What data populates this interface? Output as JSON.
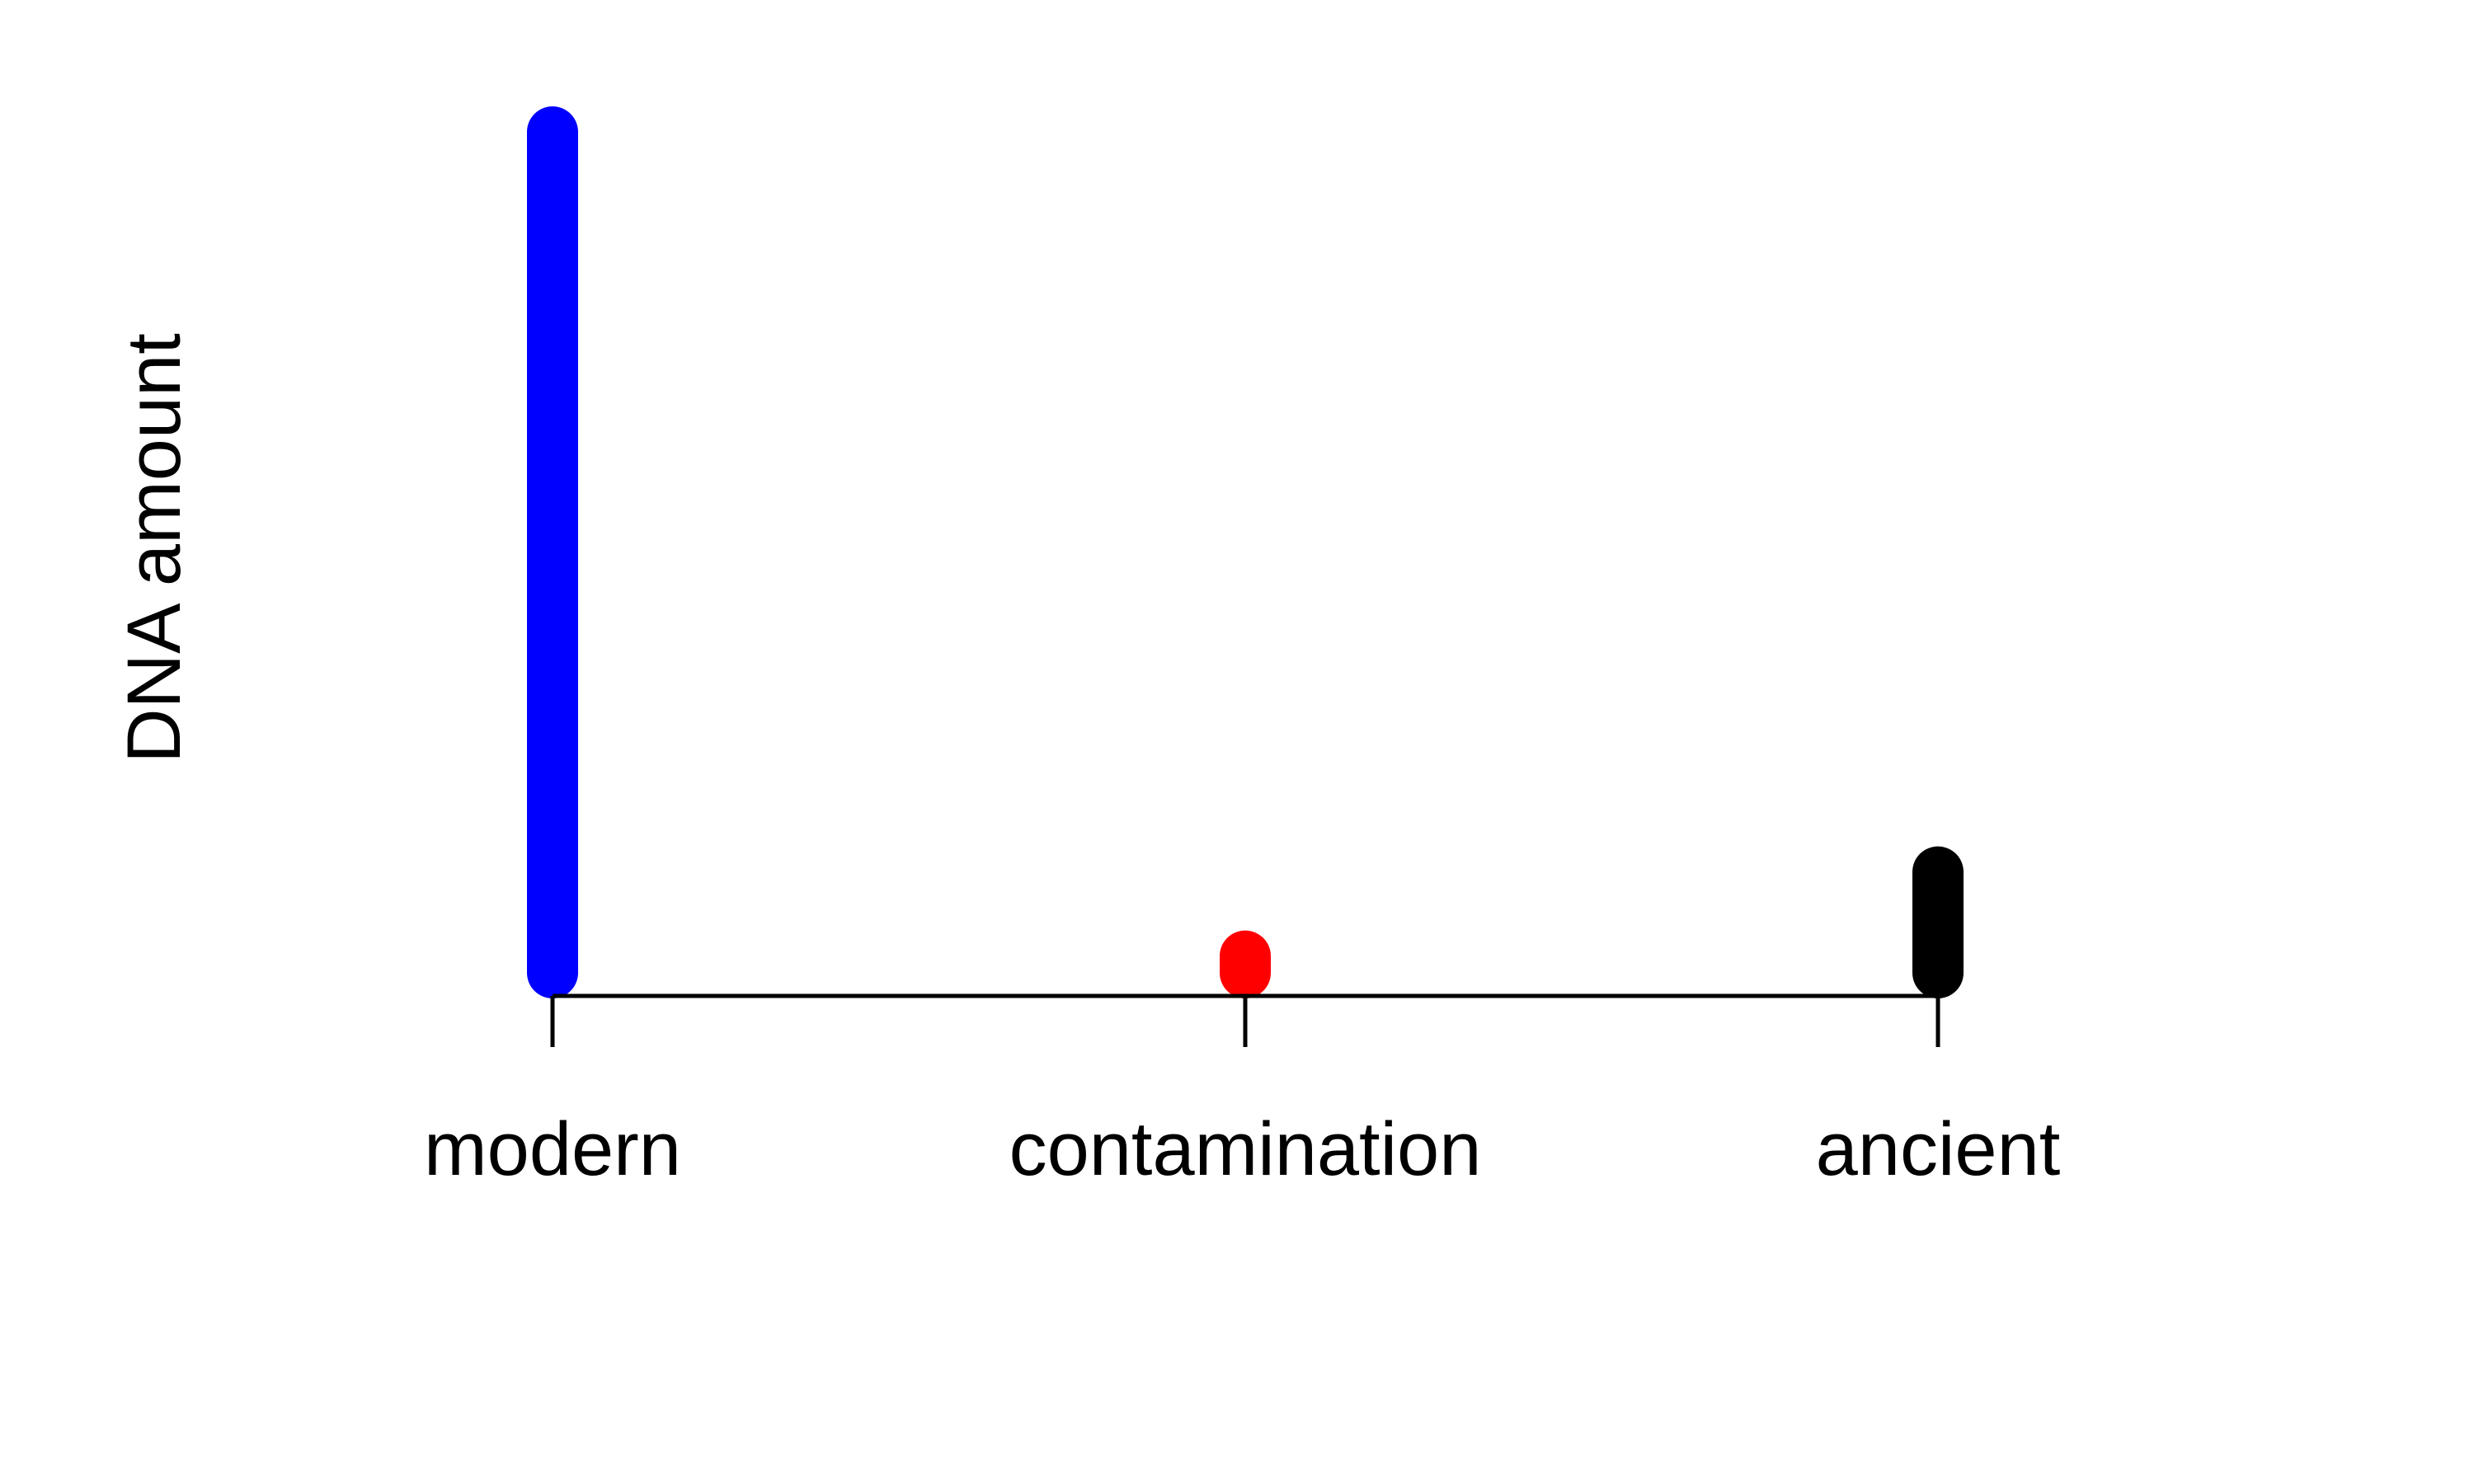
{
  "chart_data": {
    "type": "bar",
    "title": "",
    "xlabel": "",
    "ylabel": "DNA amount",
    "categories": [
      "modern",
      "contamination",
      "ancient"
    ],
    "values": [
      100,
      2,
      12
    ],
    "colors": [
      "#0000ff",
      "#ff0000",
      "#000000"
    ],
    "ylim": [
      0,
      100
    ],
    "grid": false,
    "legend": "none",
    "axis_color": "#000000"
  }
}
